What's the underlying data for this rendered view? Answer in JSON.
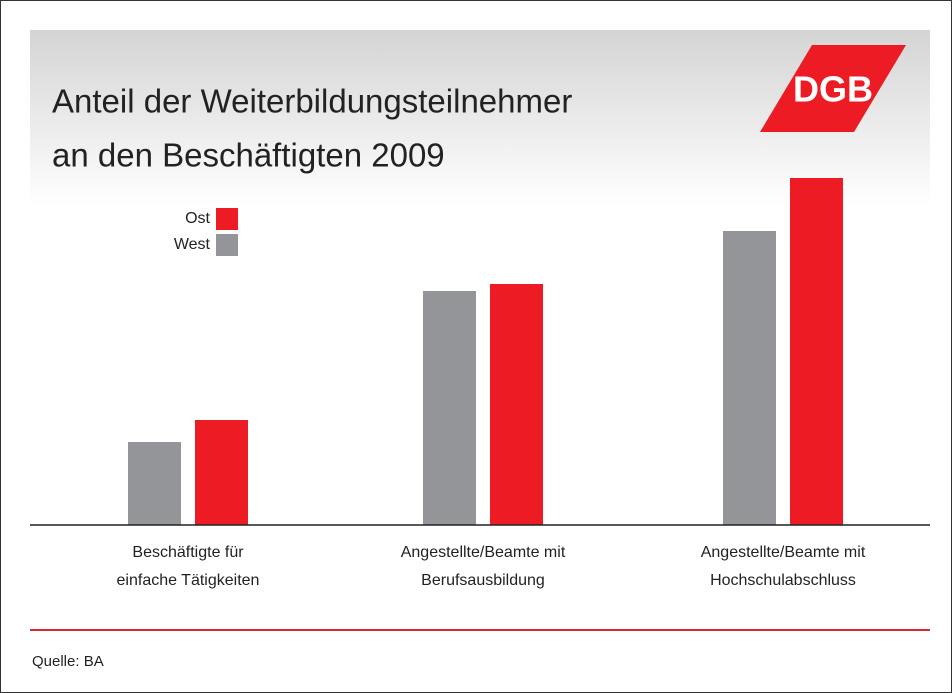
{
  "chart_data": {
    "type": "bar",
    "title": [
      "Anteil der Weiterbildungsteilnehmer",
      "an den Beschäftigten 2009"
    ],
    "logo": "DGB",
    "categories": [
      [
        "Beschäftigte für",
        "einfache Tätigkeiten"
      ],
      [
        "Angestellte/Beamte mit",
        "Berufsausbildung"
      ],
      [
        "Angestellte/Beamte mit",
        "Hochschulabschluss"
      ]
    ],
    "series": [
      {
        "name": "Ost",
        "color": "#ed1c24",
        "values": [
          10.5,
          24.1,
          34.7
        ]
      },
      {
        "name": "West",
        "color": "#939598",
        "values": [
          8.3,
          23.4,
          29.4
        ]
      }
    ],
    "ylim": [
      0,
      40
    ],
    "source": "Quelle: BA"
  }
}
